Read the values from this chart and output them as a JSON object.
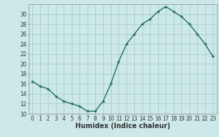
{
  "x": [
    0,
    1,
    2,
    3,
    4,
    5,
    6,
    7,
    8,
    9,
    10,
    11,
    12,
    13,
    14,
    15,
    16,
    17,
    18,
    19,
    20,
    21,
    22,
    23
  ],
  "y": [
    16.5,
    15.5,
    15.0,
    13.5,
    12.5,
    12.0,
    11.5,
    10.5,
    10.5,
    12.5,
    16.0,
    20.5,
    24.0,
    26.0,
    28.0,
    29.0,
    30.5,
    31.5,
    30.5,
    29.5,
    28.0,
    26.0,
    24.0,
    21.5
  ],
  "line_color": "#1a6b5a",
  "marker": "+",
  "marker_size": 3,
  "marker_linewidth": 1.0,
  "linewidth": 1.0,
  "bg_color": "#cce8e8",
  "grid_color": "#a0c8c8",
  "xlabel": "Humidex (Indice chaleur)",
  "xlabel_fontsize": 7,
  "xlim": [
    -0.5,
    23.5
  ],
  "ylim": [
    10,
    32
  ],
  "yticks": [
    10,
    12,
    14,
    16,
    18,
    20,
    22,
    24,
    26,
    28,
    30
  ],
  "xticks": [
    0,
    1,
    2,
    3,
    4,
    5,
    6,
    7,
    8,
    9,
    10,
    11,
    12,
    13,
    14,
    15,
    16,
    17,
    18,
    19,
    20,
    21,
    22,
    23
  ],
  "tick_fontsize": 5.5,
  "spine_color": "#888888"
}
